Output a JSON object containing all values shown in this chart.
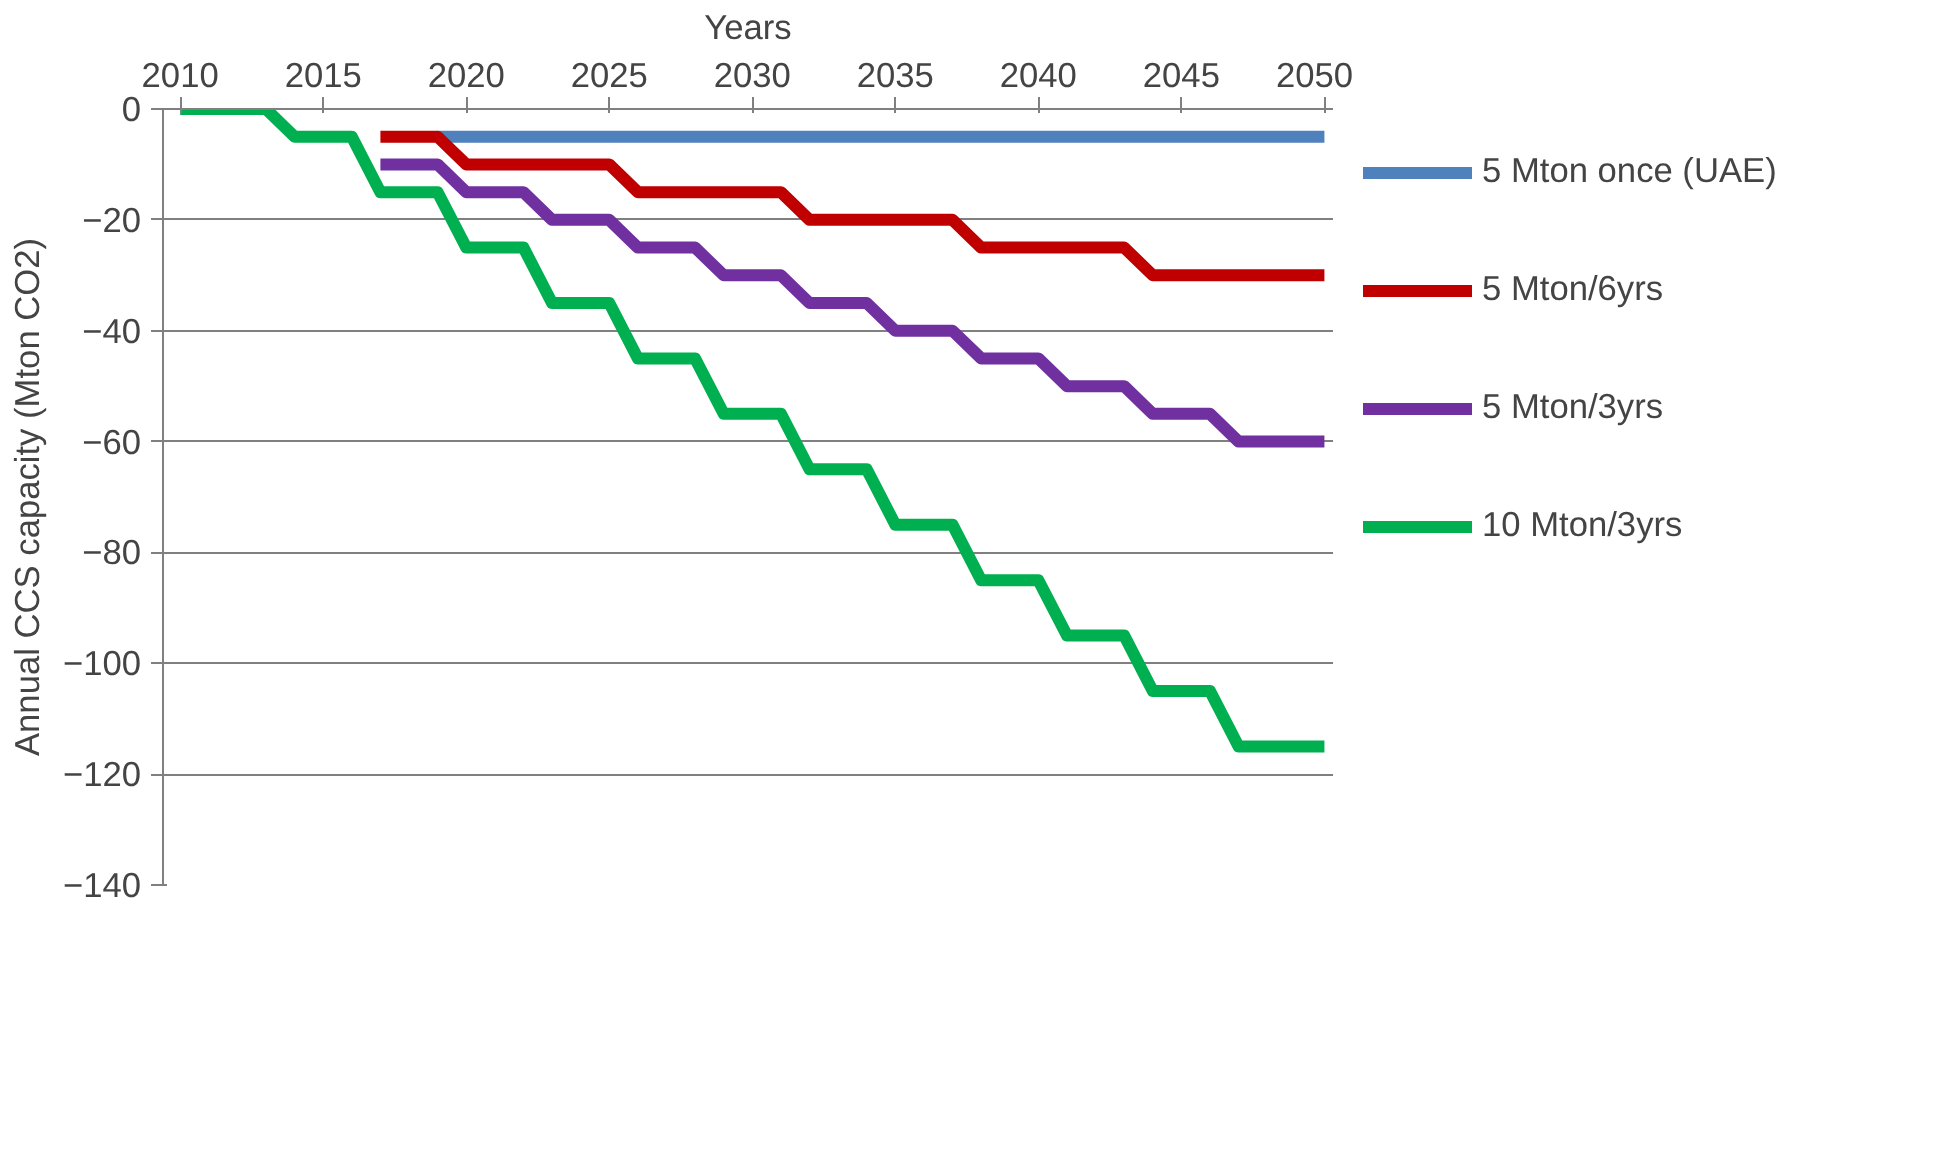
{
  "chart_data": {
    "type": "line",
    "xlabel": "Years",
    "ylabel": "Annual CCS capacity (Mton CO2)",
    "x": [
      2010,
      2011,
      2012,
      2013,
      2014,
      2015,
      2016,
      2017,
      2018,
      2019,
      2020,
      2021,
      2022,
      2023,
      2024,
      2025,
      2026,
      2027,
      2028,
      2029,
      2030,
      2031,
      2032,
      2033,
      2034,
      2035,
      2036,
      2037,
      2038,
      2039,
      2040,
      2041,
      2042,
      2043,
      2044,
      2045,
      2046,
      2047,
      2048,
      2049,
      2050
    ],
    "series": [
      {
        "name": "5 Mton once (UAE)",
        "color": "#4f81bd",
        "values": [
          null,
          null,
          null,
          null,
          null,
          null,
          null,
          null,
          null,
          -5,
          -5,
          -5,
          -5,
          -5,
          -5,
          -5,
          -5,
          -5,
          -5,
          -5,
          -5,
          -5,
          -5,
          -5,
          -5,
          -5,
          -5,
          -5,
          -5,
          -5,
          -5,
          -5,
          -5,
          -5,
          -5,
          -5,
          -5,
          -5,
          -5,
          -5,
          -5
        ]
      },
      {
        "name": "5 Mton/6yrs",
        "color": "#c00000",
        "values": [
          null,
          null,
          null,
          null,
          null,
          null,
          null,
          -5,
          -5,
          -5,
          -10,
          -10,
          -10,
          -10,
          -10,
          -10,
          -15,
          -15,
          -15,
          -15,
          -15,
          -15,
          -20,
          -20,
          -20,
          -20,
          -20,
          -20,
          -25,
          -25,
          -25,
          -25,
          -25,
          -25,
          -30,
          -30,
          -30,
          -30,
          -30,
          -30,
          -30
        ]
      },
      {
        "name": "5 Mton/3yrs",
        "color": "#7030a0",
        "values": [
          null,
          null,
          null,
          null,
          null,
          null,
          null,
          -10,
          -10,
          -10,
          -15,
          -15,
          -15,
          -20,
          -20,
          -20,
          -25,
          -25,
          -25,
          -30,
          -30,
          -30,
          -35,
          -35,
          -35,
          -40,
          -40,
          -40,
          -45,
          -45,
          -45,
          -50,
          -50,
          -50,
          -55,
          -55,
          -55,
          -60,
          -60,
          -60,
          -60
        ]
      },
      {
        "name": "10 Mton/3yrs",
        "color": "#00b050",
        "values": [
          0,
          0,
          0,
          0,
          -5,
          -5,
          -5,
          -15,
          -15,
          -15,
          -25,
          -25,
          -25,
          -35,
          -35,
          -35,
          -45,
          -45,
          -45,
          -55,
          -55,
          -55,
          -65,
          -65,
          -65,
          -75,
          -75,
          -75,
          -85,
          -85,
          -85,
          -95,
          -95,
          -95,
          -105,
          -105,
          -105,
          -115,
          -115,
          -115,
          -115
        ]
      }
    ],
    "xlim": [
      2009.4,
      2050.3
    ],
    "xticks": [
      2010,
      2015,
      2020,
      2025,
      2030,
      2035,
      2040,
      2045,
      2050
    ],
    "ylim": [
      -140,
      0
    ],
    "yticks": [
      0,
      -20,
      -40,
      -60,
      -80,
      -100,
      -120,
      -140
    ],
    "grid": "y",
    "legend": "right",
    "marker": "none",
    "line_style": "solid"
  }
}
